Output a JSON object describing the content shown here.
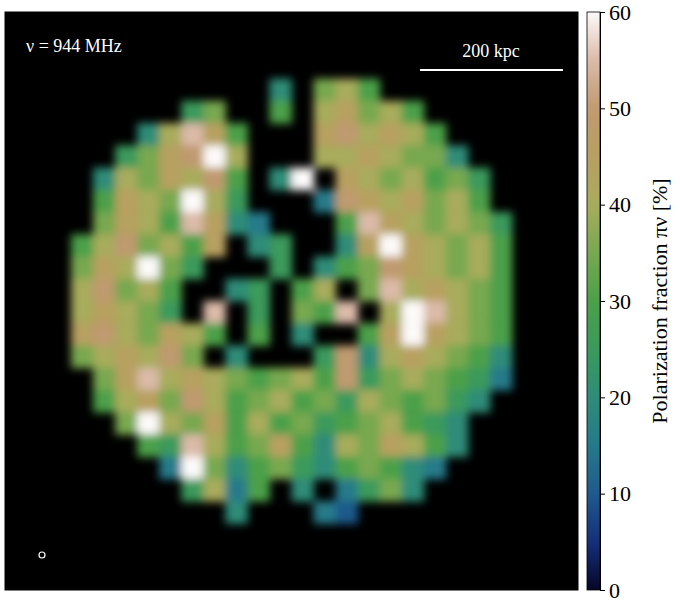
{
  "chart_data": {
    "type": "heatmap",
    "annotation": "ν = 944 MHz",
    "scale_bar_label": "200 kpc",
    "colorbar_label": "Polarization fraction πν [%]",
    "zlim": [
      0,
      60
    ],
    "zticks": [
      0,
      10,
      20,
      30,
      40,
      50,
      60
    ],
    "tick_labels": false,
    "cells": [
      [
        null,
        null,
        null,
        null,
        null,
        null,
        null,
        null,
        null,
        null,
        null,
        null,
        null,
        null,
        null,
        null,
        null,
        null,
        null,
        null,
        null,
        null,
        null,
        null,
        null,
        null
      ],
      [
        null,
        null,
        null,
        null,
        null,
        null,
        null,
        null,
        null,
        null,
        null,
        null,
        null,
        null,
        null,
        null,
        null,
        null,
        null,
        null,
        null,
        null,
        null,
        null,
        null,
        null
      ],
      [
        null,
        null,
        null,
        null,
        null,
        null,
        null,
        null,
        null,
        null,
        null,
        null,
        null,
        null,
        null,
        null,
        null,
        null,
        null,
        null,
        null,
        null,
        null,
        null,
        null,
        null
      ],
      [
        null,
        null,
        null,
        null,
        null,
        null,
        null,
        null,
        null,
        null,
        null,
        null,
        20,
        null,
        35,
        40,
        30,
        null,
        null,
        null,
        null,
        null,
        null,
        null,
        null,
        null
      ],
      [
        null,
        null,
        null,
        null,
        null,
        null,
        null,
        null,
        25,
        35,
        null,
        null,
        30,
        null,
        40,
        45,
        35,
        40,
        30,
        null,
        null,
        null,
        null,
        null,
        null,
        null
      ],
      [
        null,
        null,
        null,
        null,
        null,
        null,
        20,
        40,
        55,
        45,
        30,
        null,
        null,
        null,
        45,
        50,
        40,
        45,
        40,
        30,
        null,
        null,
        null,
        null,
        null,
        null
      ],
      [
        null,
        null,
        null,
        null,
        null,
        25,
        35,
        45,
        50,
        60,
        40,
        null,
        null,
        null,
        40,
        40,
        45,
        40,
        35,
        35,
        20,
        null,
        null,
        null,
        null,
        null
      ],
      [
        null,
        null,
        null,
        null,
        20,
        40,
        35,
        45,
        40,
        50,
        30,
        null,
        20,
        60,
        null,
        45,
        40,
        35,
        40,
        30,
        35,
        25,
        null,
        null,
        null,
        null
      ],
      [
        null,
        null,
        null,
        null,
        30,
        45,
        40,
        35,
        60,
        40,
        25,
        null,
        null,
        null,
        15,
        50,
        45,
        40,
        45,
        35,
        40,
        30,
        null,
        null,
        null,
        null
      ],
      [
        null,
        null,
        null,
        null,
        35,
        45,
        40,
        30,
        55,
        45,
        20,
        15,
        null,
        null,
        null,
        30,
        55,
        45,
        40,
        35,
        40,
        35,
        25,
        null,
        null,
        null
      ],
      [
        null,
        null,
        null,
        30,
        40,
        50,
        35,
        40,
        30,
        45,
        null,
        20,
        25,
        null,
        null,
        20,
        45,
        60,
        45,
        40,
        35,
        40,
        30,
        null,
        null,
        null
      ],
      [
        null,
        null,
        null,
        35,
        45,
        40,
        60,
        35,
        25,
        null,
        null,
        null,
        25,
        null,
        20,
        30,
        35,
        50,
        45,
        40,
        35,
        40,
        30,
        null,
        null,
        null
      ],
      [
        null,
        null,
        null,
        40,
        50,
        35,
        40,
        30,
        null,
        null,
        20,
        25,
        null,
        30,
        40,
        null,
        35,
        55,
        40,
        45,
        40,
        35,
        30,
        null,
        null,
        null
      ],
      [
        null,
        null,
        null,
        40,
        45,
        40,
        35,
        25,
        null,
        55,
        null,
        25,
        null,
        35,
        30,
        55,
        null,
        40,
        60,
        55,
        40,
        35,
        30,
        null,
        null,
        null
      ],
      [
        null,
        null,
        null,
        45,
        50,
        40,
        35,
        45,
        40,
        30,
        null,
        30,
        null,
        20,
        null,
        null,
        30,
        45,
        60,
        45,
        40,
        35,
        30,
        null,
        null,
        null
      ],
      [
        null,
        null,
        null,
        35,
        40,
        45,
        40,
        50,
        35,
        null,
        20,
        null,
        null,
        null,
        25,
        50,
        20,
        40,
        45,
        40,
        35,
        30,
        20,
        null,
        null,
        null
      ],
      [
        null,
        null,
        null,
        null,
        35,
        45,
        55,
        40,
        45,
        40,
        35,
        30,
        35,
        40,
        30,
        50,
        25,
        35,
        40,
        35,
        30,
        25,
        15,
        null,
        null,
        null
      ],
      [
        null,
        null,
        null,
        null,
        30,
        40,
        45,
        35,
        50,
        40,
        30,
        35,
        40,
        30,
        35,
        25,
        40,
        35,
        30,
        35,
        25,
        20,
        null,
        null,
        null,
        null
      ],
      [
        null,
        null,
        null,
        null,
        null,
        35,
        60,
        40,
        35,
        45,
        30,
        40,
        30,
        35,
        25,
        30,
        35,
        40,
        30,
        25,
        20,
        null,
        null,
        null,
        null,
        null
      ],
      [
        null,
        null,
        null,
        null,
        null,
        null,
        30,
        25,
        55,
        40,
        30,
        35,
        45,
        30,
        20,
        40,
        35,
        45,
        40,
        30,
        20,
        null,
        null,
        null,
        null,
        null
      ],
      [
        null,
        null,
        null,
        null,
        null,
        null,
        null,
        15,
        60,
        35,
        20,
        30,
        35,
        25,
        20,
        30,
        35,
        30,
        20,
        15,
        null,
        null,
        null,
        null,
        null,
        null
      ],
      [
        null,
        null,
        null,
        null,
        null,
        null,
        null,
        null,
        25,
        40,
        15,
        30,
        null,
        20,
        null,
        15,
        25,
        35,
        20,
        null,
        null,
        null,
        null,
        null,
        null,
        null
      ],
      [
        null,
        null,
        null,
        null,
        null,
        null,
        null,
        null,
        null,
        null,
        20,
        null,
        null,
        null,
        15,
        10,
        null,
        null,
        null,
        null,
        null,
        null,
        null,
        null,
        null,
        null
      ],
      [
        null,
        null,
        null,
        null,
        null,
        null,
        null,
        null,
        null,
        null,
        null,
        null,
        null,
        null,
        null,
        null,
        null,
        null,
        null,
        null,
        null,
        null,
        null,
        null,
        null,
        null
      ],
      [
        null,
        null,
        null,
        null,
        null,
        null,
        null,
        null,
        null,
        null,
        null,
        null,
        null,
        null,
        null,
        null,
        null,
        null,
        null,
        null,
        null,
        null,
        null,
        null,
        null,
        null
      ],
      [
        null,
        null,
        null,
        null,
        null,
        null,
        null,
        null,
        null,
        null,
        null,
        null,
        null,
        null,
        null,
        null,
        null,
        null,
        null,
        null,
        null,
        null,
        null,
        null,
        null,
        null
      ]
    ]
  }
}
